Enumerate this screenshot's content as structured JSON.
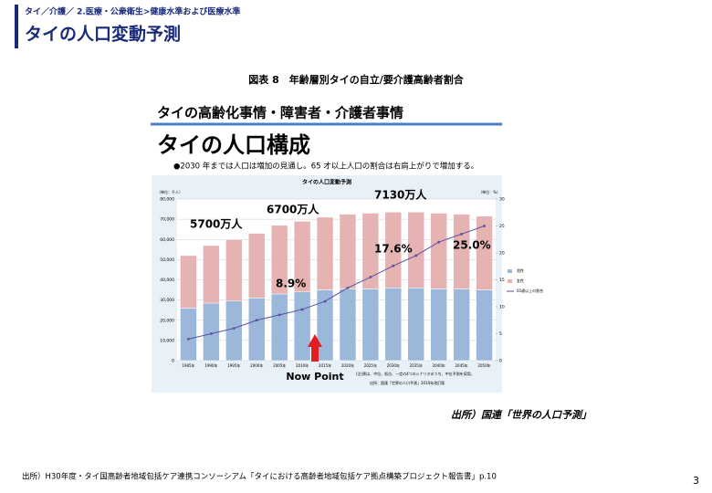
{
  "header": {
    "breadcrumb": "タイ／介護／ 2.医療・公衆衛生>健康水準および医療水準",
    "title": "タイの人口変動予測"
  },
  "figure": {
    "caption": "図表 8　年齢層別タイの自立/要介護高齢者割合",
    "banner": "タイの高齢化事情・障害者・介護者事情",
    "heading": "タイの人口構成",
    "bullet": "●2030 年までは人口は増加の見通し。65 才以上人口の割合は右肩上がりで増加する。",
    "source": "出所）国連「世界の人口予測」"
  },
  "chart_data": {
    "type": "bar",
    "title": "タイの人口変動予測",
    "y_label": "（単位：千人）",
    "y2_label": "（単位：%）",
    "categories": [
      "1985年",
      "1990年",
      "1995年",
      "2000年",
      "2005年",
      "2010年",
      "2015年",
      "2020年",
      "2025年",
      "2030年",
      "2035年",
      "2040年",
      "2045年",
      "2050年"
    ],
    "stacked": true,
    "series": [
      {
        "name": "男性",
        "color": "#9bb7d9",
        "values": [
          26000,
          28500,
          29500,
          31000,
          33000,
          34000,
          35000,
          35500,
          35500,
          36000,
          36000,
          35500,
          35500,
          35000
        ]
      },
      {
        "name": "女性",
        "color": "#e6b3b3",
        "values": [
          26000,
          28500,
          30500,
          32000,
          34000,
          35000,
          36000,
          37000,
          37500,
          37500,
          37500,
          37500,
          37000,
          36500
        ]
      },
      {
        "name": "65歳以上の割合",
        "type": "line",
        "axis": "y2",
        "color": "#5a4fa0",
        "values": [
          4,
          5,
          6,
          7.5,
          8.5,
          9.5,
          11,
          13.5,
          15.5,
          17.6,
          19.5,
          22,
          23.5,
          25
        ]
      }
    ],
    "ylim": [
      0,
      80000
    ],
    "yticks": [
      0,
      {
        "value": 10000,
        "label": "10,000"
      },
      {
        "value": 20000,
        "label": "20,000"
      },
      {
        "value": 30000,
        "label": "30,000"
      },
      {
        "value": 40000,
        "label": "40,000"
      },
      {
        "value": 50000,
        "label": "50,000"
      },
      {
        "value": 60000,
        "label": "60,000"
      },
      {
        "value": 70000,
        "label": "70,000"
      },
      {
        "value": 80000,
        "label": "80,000"
      }
    ],
    "y2lim": [
      0,
      30
    ],
    "y2ticks": [
      0,
      5,
      10,
      15,
      20,
      25,
      30
    ],
    "grid": true,
    "annotations": [
      "5700万人",
      "6700万人",
      "7130万人",
      "8.9%",
      "17.6%",
      "25.0%",
      "Now Point"
    ],
    "notes": [
      "(注)黒は、中位、低位、一定の4つのシナリオのうち、中位予測を採用。",
      "出所：国連「世界の人口予測」2010年改訂版"
    ]
  },
  "footer": {
    "source": "出所）H30年度・タイ国高齢者地域包括ケア連携コンソーシアム「タイにおける高齢者地域包括ケア拠点構築プロジェクト報告書」p.10",
    "page": "3"
  }
}
